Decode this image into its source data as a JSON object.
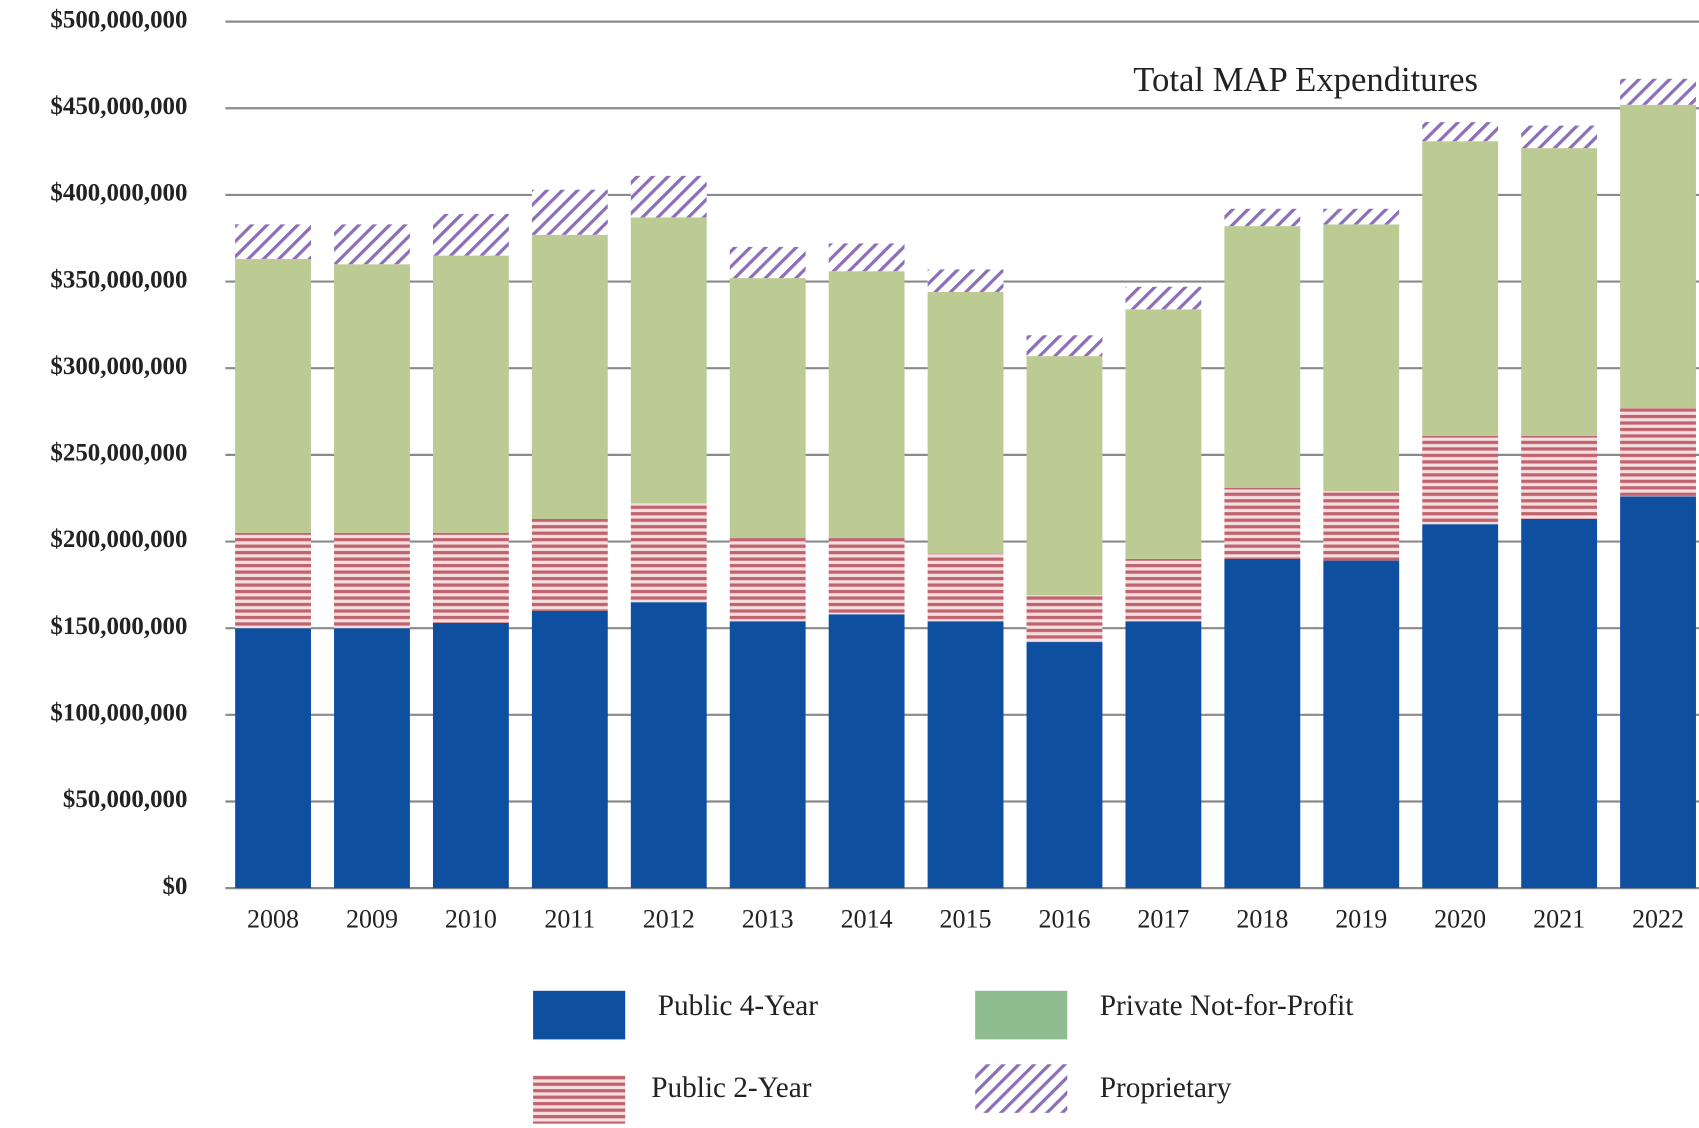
{
  "chart_data": {
    "type": "stacked_bar",
    "annotation": "Total MAP Expenditures",
    "categories": [
      "2008",
      "2009",
      "2010",
      "2011",
      "2012",
      "2013",
      "2014",
      "2015",
      "2016",
      "2017",
      "2018",
      "2019",
      "2020",
      "2021",
      "2022"
    ],
    "series": [
      {
        "name": "Public 4-Year",
        "color": "#0f4fa0",
        "pattern": "solid",
        "values": [
          150000000,
          150000000,
          153000000,
          160000000,
          165000000,
          154000000,
          158000000,
          154000000,
          142000000,
          154000000,
          190000000,
          189000000,
          210000000,
          213000000,
          226000000
        ]
      },
      {
        "name": "Public 2-Year",
        "color": "#c0636e",
        "pattern": "horizontal",
        "values": [
          55000000,
          55000000,
          52000000,
          53000000,
          57000000,
          48000000,
          44000000,
          39000000,
          27000000,
          36000000,
          41000000,
          40000000,
          51000000,
          48000000,
          51000000
        ]
      },
      {
        "name": "Private Not-for-Profit",
        "color": "#bccb94",
        "pattern": "solid",
        "values": [
          158000000,
          155000000,
          160000000,
          164000000,
          165000000,
          150000000,
          154000000,
          151000000,
          138000000,
          144000000,
          151000000,
          154000000,
          170000000,
          166000000,
          175000000
        ]
      },
      {
        "name": "Proprietary",
        "color": "#8d6fb8",
        "pattern": "diagonal",
        "values": [
          20000000,
          23000000,
          24000000,
          26000000,
          24000000,
          18000000,
          16000000,
          13000000,
          12000000,
          13000000,
          10000000,
          9000000,
          11000000,
          13000000,
          15000000
        ]
      }
    ],
    "ylim": [
      0,
      500000000
    ],
    "yticks": [
      {
        "value": 0,
        "label": "$0"
      },
      {
        "value": 50000000,
        "label": "$50,000,000"
      },
      {
        "value": 100000000,
        "label": "$100,000,000"
      },
      {
        "value": 150000000,
        "label": "$150,000,000"
      },
      {
        "value": 200000000,
        "label": "$200,000,000"
      },
      {
        "value": 250000000,
        "label": "$250,000,000"
      },
      {
        "value": 300000000,
        "label": "$300,000,000"
      },
      {
        "value": 350000000,
        "label": "$350,000,000"
      },
      {
        "value": 400000000,
        "label": "$400,000,000"
      },
      {
        "value": 450000000,
        "label": "$450,000,000"
      },
      {
        "value": 500000000,
        "label": "$500,000,000"
      }
    ],
    "grid": true
  }
}
